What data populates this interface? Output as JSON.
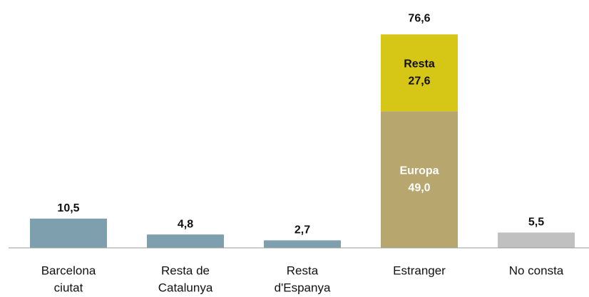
{
  "chart_data": {
    "type": "bar",
    "categories": [
      [
        "Barcelona",
        "ciutat"
      ],
      [
        "Resta de",
        "Catalunya"
      ],
      [
        "Resta",
        "d'Espanya"
      ],
      [
        "Estranger"
      ],
      [
        "No consta"
      ]
    ],
    "values": [
      10.5,
      4.8,
      2.7,
      null,
      5.5
    ],
    "value_labels": [
      "10,5",
      "4,8",
      "2,7",
      null,
      "5,5"
    ],
    "colors": [
      "#7d9fae",
      "#7d9fae",
      "#7d9fae",
      null,
      "#c0c0c0"
    ],
    "stack": {
      "category": 3,
      "segments": [
        {
          "name": "Europa",
          "value": 49.0,
          "value_label": "49,0",
          "color": "#b8a66f",
          "label_color": "#ffffff"
        },
        {
          "name": "Resta",
          "value": 27.6,
          "value_label": "27,6",
          "color": "#d6c615",
          "label_color": "#111111"
        }
      ],
      "total": 76.6,
      "total_label": "76,6"
    },
    "ylim": [
      0,
      80
    ]
  }
}
